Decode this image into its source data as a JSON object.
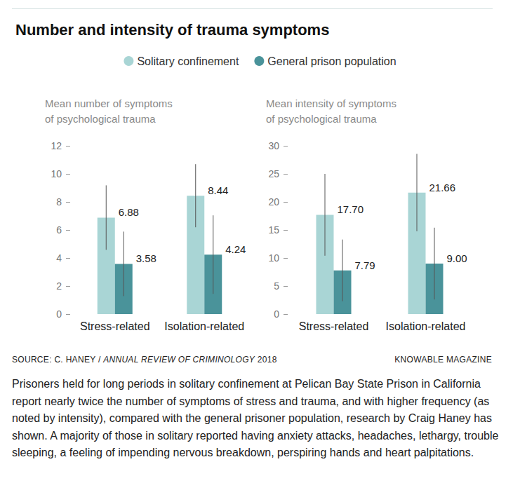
{
  "title": "Number and intensity of trauma symptoms",
  "legend": "top",
  "source_parts": [
    "SOURCE: C. HANEY / ",
    "ANNUAL REVIEW OF CRIMINOLOGY",
    " 2018"
  ],
  "credit": "KNOWABLE MAGAZINE",
  "caption": "Prisoners held for long periods in solitary confinement at Pelican Bay State Prison in California report nearly twice the number of symptoms of stress and trauma, and with higher frequency (as noted by intensity), compared with the general prisoner population, research by Craig Haney has shown. A majority of those in solitary reported having anxiety attacks, headaches, lethargy, trouble sleeping, a feeling of impending nervous breakdown, perspiring hands and heart palpitations.",
  "chart_data": [
    {
      "type": "bar",
      "y_label": "Mean number of symptoms\nof psychological trauma",
      "categories": [
        "Stress-related",
        "Isolation-related"
      ],
      "series": [
        {
          "name": "Solitary confinement",
          "color": "#a9d5d5",
          "values": [
            6.88,
            8.44
          ],
          "errors": [
            2.3,
            2.25
          ]
        },
        {
          "name": "General prison population",
          "color": "#4a939a",
          "values": [
            3.58,
            4.24
          ],
          "errors": [
            2.3,
            2.8
          ]
        }
      ],
      "ylim": [
        0,
        12
      ],
      "yticks": [
        0,
        2,
        4,
        6,
        8,
        10,
        12
      ],
      "grid": false,
      "data_labels": true
    },
    {
      "type": "bar",
      "y_label": "Mean intensity of symptoms\nof psychological trauma",
      "categories": [
        "Stress-related",
        "Isolation-related"
      ],
      "series": [
        {
          "name": "Solitary confinement",
          "color": "#a9d5d5",
          "values": [
            17.7,
            21.66
          ],
          "value_labels": [
            "17.70",
            "21.66"
          ],
          "errors": [
            7.3,
            6.9
          ]
        },
        {
          "name": "General prison population",
          "color": "#4a939a",
          "values": [
            7.79,
            9.0
          ],
          "value_labels": [
            "7.79",
            "9.00"
          ],
          "errors": [
            5.5,
            6.4
          ]
        }
      ],
      "ylim": [
        0,
        30
      ],
      "yticks": [
        0,
        5,
        10,
        15,
        20,
        25,
        30
      ],
      "grid": false,
      "data_labels": true
    }
  ]
}
